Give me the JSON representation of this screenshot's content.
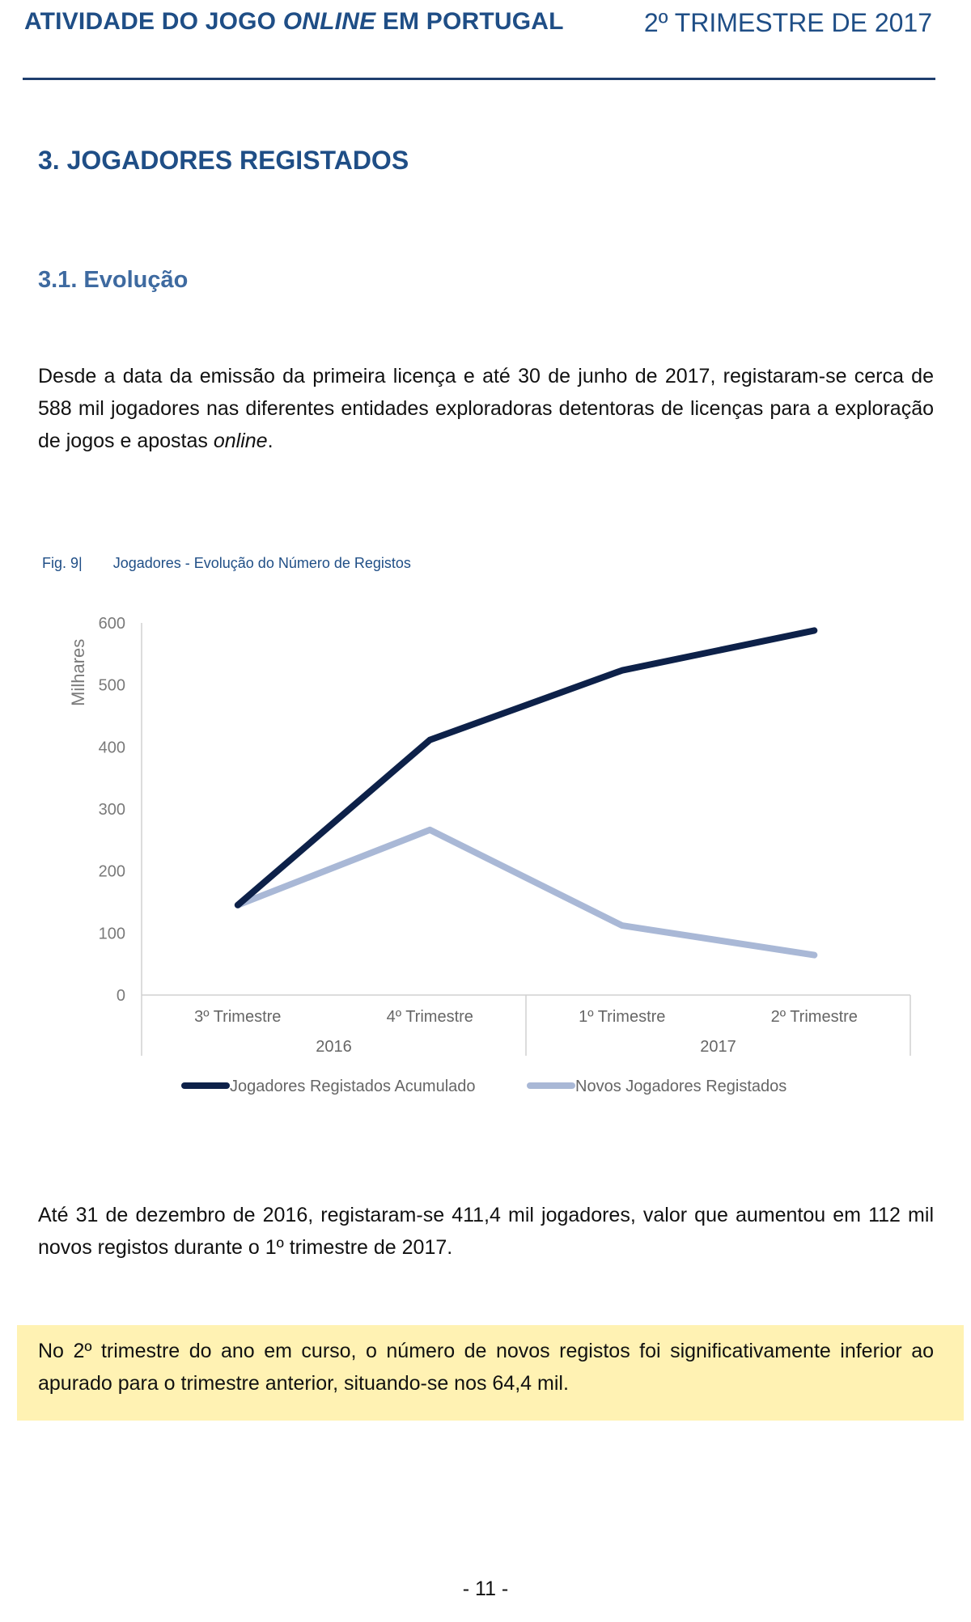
{
  "header": {
    "title_part1": "ATIVIDADE DO JOGO ",
    "title_italic": "ONLINE",
    "title_part2": " EM PORTUGAL",
    "period": "2º TRIMESTRE DE 2017"
  },
  "section": {
    "title": "3. JOGADORES REGISTADOS",
    "subsection_title": "3.1. Evolução"
  },
  "paragraph1": {
    "text": "Desde a data da emissão da primeira licença e até 30 de junho de 2017, registaram-se cerca de 588 mil jogadores nas diferentes entidades exploradoras detentoras de licenças para a exploração de jogos e apostas ",
    "italic": "online",
    "end": "."
  },
  "figure": {
    "label": "Fig. 9|",
    "title": "Jogadores - Evolução do Número de Registos"
  },
  "chart_data": {
    "type": "line",
    "title": "Jogadores - Evolução do Número de Registos",
    "ylabel": "Milhares",
    "xlabel": "",
    "categories": [
      "3º Trimestre",
      "4º Trimestre",
      "1º Trimestre",
      "2º Trimestre"
    ],
    "category_groups": [
      {
        "label": "2016",
        "span": 2
      },
      {
        "label": "2017",
        "span": 2
      }
    ],
    "yticks": [
      "0",
      "100",
      "200",
      "300",
      "400",
      "500",
      "600"
    ],
    "ylim": [
      0,
      600
    ],
    "grid": false,
    "legend_position": "bottom",
    "series": [
      {
        "name": "Jogadores Registados Acumulado",
        "values": [
          145,
          411.4,
          523.4,
          587.8
        ],
        "color": "#0d2149"
      },
      {
        "name": "Novos Jogadores Registados",
        "values": [
          145,
          266.4,
          112,
          64.4
        ],
        "color": "#a9b8d6"
      }
    ]
  },
  "paragraph2": {
    "text": "Até 31 de dezembro de 2016, registaram-se 411,4 mil jogadores, valor que aumentou em 112 mil novos registos durante o 1º trimestre de 2017."
  },
  "highlight": {
    "text": "No 2º trimestre do ano em curso, o número de novos registos foi significativamente inferior ao apurado para o trimestre anterior, situando-se nos 64,4 mil."
  },
  "footer": {
    "page_number": "- 11 -"
  }
}
